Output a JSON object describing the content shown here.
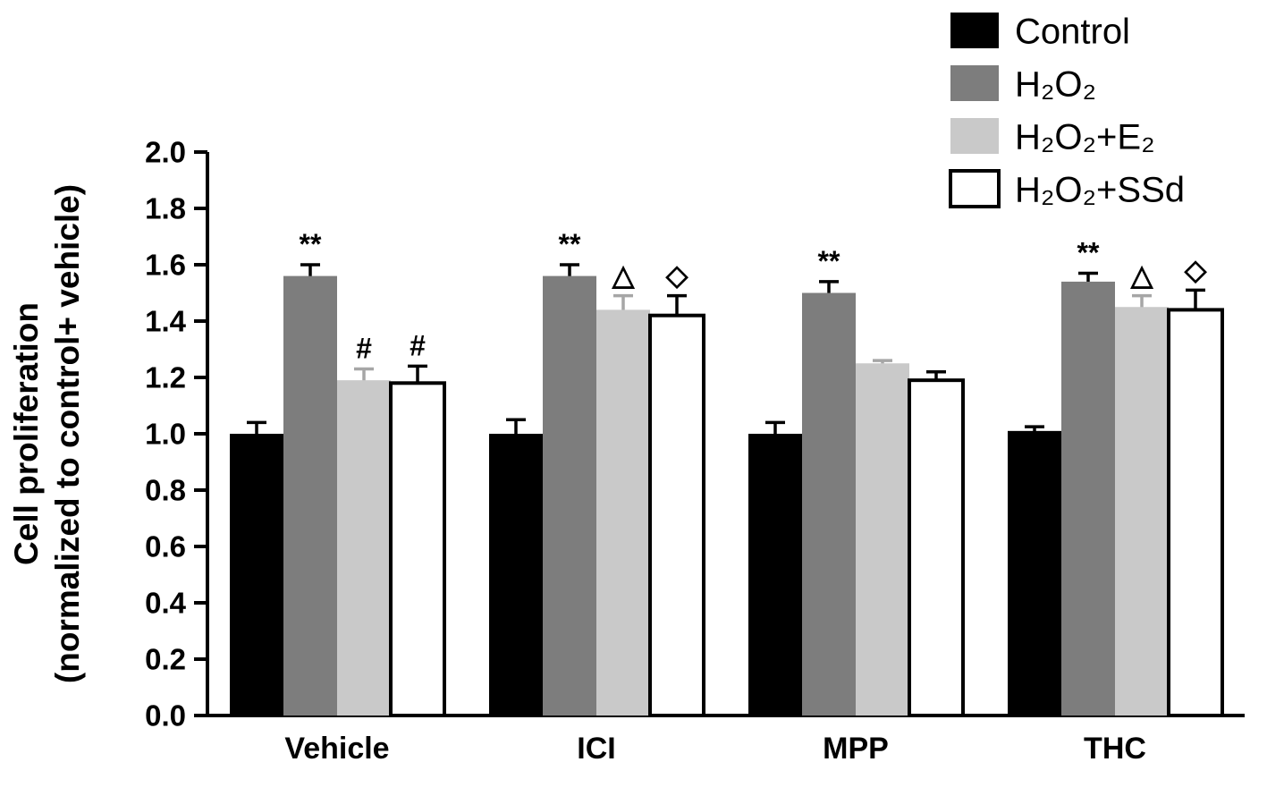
{
  "figure": {
    "background": "#ffffff",
    "axis_color": "#000000"
  },
  "chart_data": {
    "type": "bar",
    "title": "",
    "ylabel_line1": "Cell proliferation",
    "ylabel_line2": "(normalized to control+ vehicle)",
    "xlabel": "",
    "ylim": [
      0.0,
      2.0
    ],
    "yticks": [
      "0.0",
      "0.2",
      "0.4",
      "0.6",
      "0.8",
      "1.0",
      "1.2",
      "1.4",
      "1.6",
      "1.8",
      "2.0"
    ],
    "ytick_values": [
      0.0,
      0.2,
      0.4,
      0.6,
      0.8,
      1.0,
      1.2,
      1.4,
      1.6,
      1.8,
      2.0
    ],
    "grid": false,
    "legend_position": "top-right",
    "categories": [
      "Vehicle",
      "ICI",
      "MPP",
      "THC"
    ],
    "series": [
      {
        "name": "Control",
        "fill": "#000000",
        "stroke": "#000000",
        "error_color": "#000000",
        "values": [
          1.0,
          1.0,
          1.0,
          1.01
        ],
        "errors": [
          0.04,
          0.05,
          0.04,
          0.015
        ],
        "annotations": [
          "",
          "",
          "",
          ""
        ]
      },
      {
        "name": "H₂O₂",
        "fill": "#7d7d7d",
        "stroke": "#7d7d7d",
        "error_color": "#000000",
        "values": [
          1.56,
          1.56,
          1.5,
          1.54
        ],
        "errors": [
          0.04,
          0.04,
          0.04,
          0.03
        ],
        "annotations": [
          "**",
          "**",
          "**",
          "**"
        ]
      },
      {
        "name": "H₂O₂+E₂",
        "fill": "#c9c9c9",
        "stroke": "#c9c9c9",
        "error_color": "#a6a6a6",
        "values": [
          1.19,
          1.44,
          1.25,
          1.45
        ],
        "errors": [
          0.04,
          0.05,
          0.01,
          0.04
        ],
        "annotations": [
          "#",
          "△",
          "",
          "△"
        ]
      },
      {
        "name": "H₂O₂+SSd",
        "fill": "#ffffff",
        "stroke": "#000000",
        "error_color": "#000000",
        "values": [
          1.18,
          1.42,
          1.19,
          1.44
        ],
        "errors": [
          0.06,
          0.07,
          0.03,
          0.07
        ],
        "annotations": [
          "#",
          "◇",
          "",
          "◇"
        ]
      }
    ]
  }
}
